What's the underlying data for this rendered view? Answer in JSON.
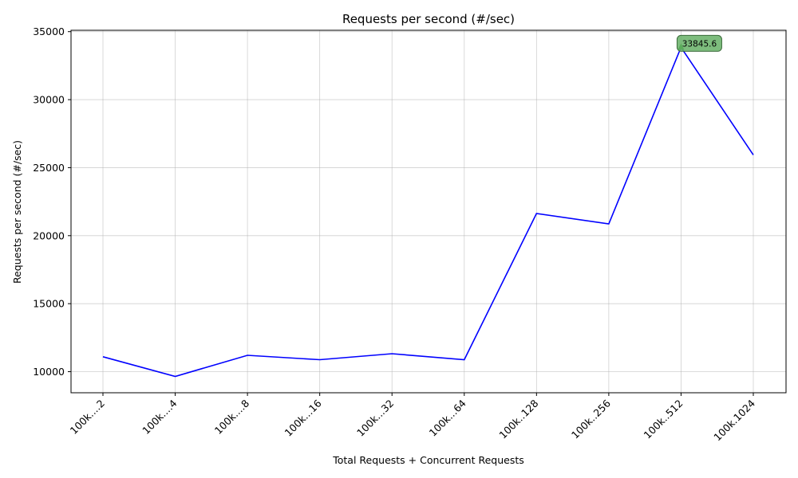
{
  "chart_data": {
    "type": "line",
    "title": "Requests per second (#/sec)",
    "xlabel": "Total Requests + Concurrent Requests",
    "ylabel": "Requests per second (#/sec)",
    "categories": [
      "100k....2",
      "100k....4",
      "100k....8",
      "100k...16",
      "100k...32",
      "100k...64",
      "100k..128",
      "100k..256",
      "100k..512",
      "100k.1024"
    ],
    "series": [
      {
        "values": [
          11100,
          9650,
          11200,
          10880,
          11320,
          10880,
          21630,
          20870,
          33845.6,
          25940
        ],
        "color": "#0000ff"
      }
    ],
    "annotation": {
      "index": 8,
      "label": "33845.6"
    },
    "yticks": [
      10000,
      15000,
      20000,
      25000,
      30000,
      35000
    ],
    "ylim": [
      8450,
      35100
    ],
    "grid": true
  }
}
